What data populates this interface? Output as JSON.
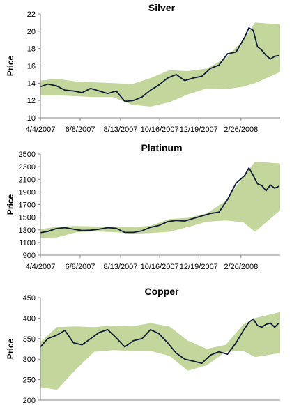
{
  "chart_data": [
    {
      "type": "area",
      "title": "Silver",
      "ylabel": "Price",
      "xlabel": "",
      "ylim": [
        10,
        22
      ],
      "yticks": [
        10,
        12,
        14,
        16,
        18,
        20,
        22
      ],
      "xlim": [
        "2007-04-04",
        "2008-04-30"
      ],
      "xticks": [
        "4/4/2007",
        "6/8/2007",
        "8/13/2007",
        "10/16/2007",
        "12/19/2007",
        "2/26/2008"
      ],
      "xtick_dates": [
        "2007-04-04",
        "2007-06-08",
        "2007-08-13",
        "2007-10-16",
        "2007-12-19",
        "2008-02-26"
      ],
      "grid": false,
      "band_color": "#c3d69b",
      "line_color": "#0f1c3a",
      "series": [
        {
          "role": "price",
          "x": [
            "2007-04-04",
            "2007-04-16",
            "2007-04-30",
            "2007-05-14",
            "2007-05-28",
            "2007-06-11",
            "2007-06-25",
            "2007-07-09",
            "2007-07-23",
            "2007-08-06",
            "2007-08-20",
            "2007-09-03",
            "2007-09-17",
            "2007-10-01",
            "2007-10-15",
            "2007-10-29",
            "2007-11-12",
            "2007-11-26",
            "2007-12-10",
            "2007-12-24",
            "2008-01-07",
            "2008-01-21",
            "2008-02-04",
            "2008-02-18",
            "2008-03-03",
            "2008-03-10",
            "2008-03-17",
            "2008-03-24",
            "2008-03-31",
            "2008-04-07",
            "2008-04-14",
            "2008-04-21",
            "2008-04-28"
          ],
          "y": [
            13.6,
            13.9,
            13.7,
            13.2,
            13.1,
            12.9,
            13.4,
            13.1,
            12.8,
            13.1,
            11.9,
            12.0,
            12.4,
            13.2,
            13.8,
            14.6,
            15.0,
            14.3,
            14.6,
            14.8,
            15.7,
            16.1,
            17.4,
            17.6,
            19.3,
            20.4,
            20.1,
            18.2,
            17.8,
            17.2,
            16.8,
            17.1,
            17.2
          ]
        },
        {
          "role": "band-upper",
          "x": [
            "2007-04-04",
            "2007-05-01",
            "2007-06-01",
            "2007-07-01",
            "2007-08-01",
            "2007-09-01",
            "2007-10-01",
            "2007-11-01",
            "2007-12-01",
            "2008-01-01",
            "2008-02-01",
            "2008-03-01",
            "2008-03-20",
            "2008-04-30"
          ],
          "y": [
            14.3,
            14.5,
            14.2,
            14.1,
            14.0,
            13.9,
            14.6,
            15.5,
            15.4,
            15.7,
            16.9,
            19.0,
            21.0,
            20.8
          ]
        },
        {
          "role": "band-lower",
          "x": [
            "2007-04-04",
            "2007-05-01",
            "2007-06-01",
            "2007-07-01",
            "2007-08-01",
            "2007-09-01",
            "2007-10-01",
            "2007-11-01",
            "2007-12-01",
            "2008-01-01",
            "2008-02-01",
            "2008-03-01",
            "2008-03-20",
            "2008-04-30"
          ],
          "y": [
            12.6,
            12.6,
            12.5,
            12.4,
            12.4,
            11.5,
            11.3,
            11.8,
            12.7,
            13.4,
            13.3,
            13.6,
            14.0,
            15.3
          ]
        }
      ]
    },
    {
      "type": "area",
      "title": "Platinum",
      "ylabel": "Price",
      "xlabel": "",
      "ylim": [
        900,
        2500
      ],
      "yticks": [
        900,
        1100,
        1300,
        1500,
        1700,
        1900,
        2100,
        2300,
        2500
      ],
      "xlim": [
        "2007-04-04",
        "2008-04-30"
      ],
      "xticks": [
        "4/4/2007",
        "6/8/2007",
        "8/13/2007",
        "10/16/2007",
        "12/19/2007",
        "2/26/2008"
      ],
      "xtick_dates": [
        "2007-04-04",
        "2007-06-08",
        "2007-08-13",
        "2007-10-16",
        "2007-12-19",
        "2008-02-26"
      ],
      "grid": false,
      "band_color": "#c3d69b",
      "line_color": "#0f1c3a",
      "series": [
        {
          "role": "price",
          "x": [
            "2007-04-04",
            "2007-04-16",
            "2007-04-30",
            "2007-05-14",
            "2007-05-28",
            "2007-06-11",
            "2007-06-25",
            "2007-07-09",
            "2007-07-23",
            "2007-08-06",
            "2007-08-20",
            "2007-09-03",
            "2007-09-17",
            "2007-10-01",
            "2007-10-15",
            "2007-10-29",
            "2007-11-12",
            "2007-11-26",
            "2007-12-10",
            "2007-12-24",
            "2008-01-07",
            "2008-01-21",
            "2008-02-04",
            "2008-02-18",
            "2008-03-03",
            "2008-03-10",
            "2008-03-17",
            "2008-03-24",
            "2008-03-31",
            "2008-04-07",
            "2008-04-14",
            "2008-04-21",
            "2008-04-28"
          ],
          "y": [
            1255,
            1275,
            1320,
            1335,
            1310,
            1290,
            1295,
            1310,
            1335,
            1325,
            1260,
            1260,
            1285,
            1340,
            1370,
            1430,
            1450,
            1440,
            1480,
            1520,
            1560,
            1580,
            1780,
            2040,
            2160,
            2280,
            2160,
            2030,
            2000,
            1920,
            2010,
            1960,
            1990
          ]
        },
        {
          "role": "band-upper",
          "x": [
            "2007-04-04",
            "2007-05-01",
            "2007-06-01",
            "2007-07-01",
            "2007-08-01",
            "2007-09-01",
            "2007-10-01",
            "2007-11-01",
            "2007-12-01",
            "2008-01-01",
            "2008-02-01",
            "2008-03-01",
            "2008-03-20",
            "2008-04-30"
          ],
          "y": [
            1310,
            1350,
            1360,
            1355,
            1345,
            1345,
            1365,
            1470,
            1490,
            1560,
            1760,
            2150,
            2380,
            2350
          ]
        },
        {
          "role": "band-lower",
          "x": [
            "2007-04-04",
            "2007-05-01",
            "2007-06-01",
            "2007-07-01",
            "2007-08-01",
            "2007-09-01",
            "2007-10-01",
            "2007-11-01",
            "2007-12-01",
            "2008-01-01",
            "2008-02-01",
            "2008-03-01",
            "2008-03-20",
            "2008-04-30"
          ],
          "y": [
            1175,
            1180,
            1260,
            1275,
            1265,
            1240,
            1250,
            1270,
            1345,
            1430,
            1450,
            1420,
            1270,
            1610
          ]
        }
      ]
    },
    {
      "type": "area",
      "title": "Copper",
      "ylabel": "Price",
      "xlabel": "",
      "ylim": [
        200,
        450
      ],
      "yticks": [
        200,
        250,
        300,
        350,
        400,
        450
      ],
      "xlim": [
        "2007-04-04",
        "2008-04-30"
      ],
      "grid": false,
      "band_color": "#c3d69b",
      "line_color": "#0f1c3a",
      "series": [
        {
          "role": "price",
          "x": [
            "2007-04-04",
            "2007-04-16",
            "2007-04-30",
            "2007-05-14",
            "2007-05-28",
            "2007-06-11",
            "2007-06-25",
            "2007-07-09",
            "2007-07-23",
            "2007-08-06",
            "2007-08-20",
            "2007-09-03",
            "2007-09-17",
            "2007-10-01",
            "2007-10-15",
            "2007-10-29",
            "2007-11-12",
            "2007-11-26",
            "2007-12-10",
            "2007-12-24",
            "2008-01-07",
            "2008-01-21",
            "2008-02-04",
            "2008-02-18",
            "2008-03-03",
            "2008-03-10",
            "2008-03-17",
            "2008-03-24",
            "2008-03-31",
            "2008-04-07",
            "2008-04-14",
            "2008-04-21",
            "2008-04-28"
          ],
          "y": [
            330,
            350,
            358,
            370,
            340,
            335,
            350,
            365,
            372,
            352,
            330,
            345,
            350,
            372,
            362,
            340,
            315,
            300,
            295,
            290,
            310,
            318,
            312,
            340,
            375,
            390,
            398,
            382,
            378,
            385,
            388,
            378,
            388
          ]
        },
        {
          "role": "band-upper",
          "x": [
            "2007-04-04",
            "2007-05-01",
            "2007-06-01",
            "2007-07-01",
            "2007-08-01",
            "2007-09-01",
            "2007-10-01",
            "2007-11-01",
            "2007-12-01",
            "2008-01-01",
            "2008-02-01",
            "2008-03-01",
            "2008-03-20",
            "2008-04-30"
          ],
          "y": [
            342,
            378,
            380,
            378,
            382,
            380,
            388,
            380,
            345,
            325,
            335,
            385,
            400,
            415
          ]
        },
        {
          "role": "band-lower",
          "x": [
            "2007-04-04",
            "2007-05-01",
            "2007-06-01",
            "2007-07-01",
            "2007-08-01",
            "2007-09-01",
            "2007-10-01",
            "2007-11-01",
            "2007-12-01",
            "2008-01-01",
            "2008-02-01",
            "2008-03-01",
            "2008-03-20",
            "2008-04-30"
          ],
          "y": [
            232,
            225,
            275,
            318,
            322,
            320,
            320,
            308,
            272,
            285,
            318,
            320,
            305,
            315
          ]
        }
      ]
    }
  ]
}
